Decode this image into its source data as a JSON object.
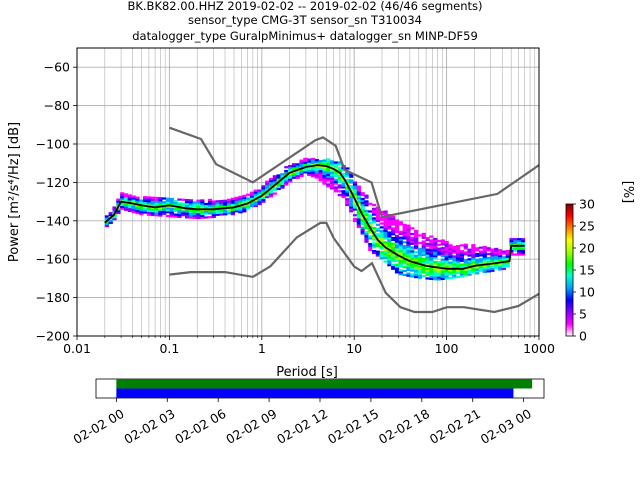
{
  "chart_data": {
    "type": "heatmap",
    "title_lines": [
      "BK.BK82.00.HHZ   2019-02-02 -- 2019-02-02  (46/46 segments)",
      "sensor_type CMG-3T sensor_sn T310034",
      "datalogger_type GuralpMinimus+ datalogger_sn MINP-DF59"
    ],
    "xlabel": "Period [s]",
    "ylabel": "Power [m²/s⁴/Hz] [dB]",
    "x_scale": "log",
    "xlim": [
      0.01,
      1000
    ],
    "ylim": [
      -200,
      -50
    ],
    "grid": true,
    "x_ticks": [
      {
        "value": 0.01,
        "label": "0.01"
      },
      {
        "value": 0.1,
        "label": "0.1"
      },
      {
        "value": 1,
        "label": "1"
      },
      {
        "value": 10,
        "label": "10"
      },
      {
        "value": 100,
        "label": "100"
      },
      {
        "value": 1000,
        "label": "1000"
      }
    ],
    "y_ticks": [
      {
        "value": -60,
        "label": "−60"
      },
      {
        "value": -80,
        "label": "−80"
      },
      {
        "value": -100,
        "label": "−100"
      },
      {
        "value": -120,
        "label": "−120"
      },
      {
        "value": -140,
        "label": "−140"
      },
      {
        "value": -160,
        "label": "−160"
      },
      {
        "value": -180,
        "label": "−180"
      },
      {
        "value": -200,
        "label": "−200"
      }
    ],
    "nhnm": [
      [
        0.1,
        -91.5
      ],
      [
        0.22,
        -97.4
      ],
      [
        0.32,
        -110.5
      ],
      [
        0.8,
        -120
      ],
      [
        3.8,
        -98
      ],
      [
        4.6,
        -96.5
      ],
      [
        6.3,
        -101
      ],
      [
        7.9,
        -113.5
      ],
      [
        15.4,
        -120
      ],
      [
        20,
        -138
      ],
      [
        354.8,
        -126
      ],
      [
        1000,
        -111
      ]
    ],
    "nlnm": [
      [
        0.1,
        -168
      ],
      [
        0.17,
        -166.7
      ],
      [
        0.4,
        -166.7
      ],
      [
        0.8,
        -169.2
      ],
      [
        1.24,
        -163.7
      ],
      [
        2.4,
        -148.6
      ],
      [
        4.3,
        -141.1
      ],
      [
        5,
        -141.1
      ],
      [
        6,
        -149
      ],
      [
        10,
        -163.8
      ],
      [
        12,
        -166.2
      ],
      [
        15.6,
        -162.1
      ],
      [
        21.9,
        -177.5
      ],
      [
        31.6,
        -185
      ],
      [
        45,
        -187.5
      ],
      [
        70,
        -187.5
      ],
      [
        101,
        -185
      ],
      [
        154,
        -185
      ],
      [
        328,
        -187.5
      ],
      [
        600,
        -184.4
      ],
      [
        1000,
        -178
      ]
    ],
    "mode_curve": [
      [
        0.02,
        -141
      ],
      [
        0.025,
        -137
      ],
      [
        0.03,
        -130
      ],
      [
        0.04,
        -131
      ],
      [
        0.05,
        -132
      ],
      [
        0.07,
        -133
      ],
      [
        0.1,
        -132
      ],
      [
        0.15,
        -133.5
      ],
      [
        0.2,
        -134
      ],
      [
        0.3,
        -134
      ],
      [
        0.5,
        -133
      ],
      [
        0.7,
        -131
      ],
      [
        1,
        -127
      ],
      [
        1.5,
        -120
      ],
      [
        2,
        -115
      ],
      [
        3,
        -112
      ],
      [
        4,
        -111
      ],
      [
        5,
        -111.5
      ],
      [
        6,
        -113
      ],
      [
        7,
        -115
      ],
      [
        8,
        -119
      ],
      [
        10,
        -128
      ],
      [
        12,
        -136
      ],
      [
        15,
        -144
      ],
      [
        18,
        -150
      ],
      [
        22,
        -154
      ],
      [
        30,
        -158
      ],
      [
        40,
        -161
      ],
      [
        60,
        -163.5
      ],
      [
        100,
        -165
      ],
      [
        150,
        -165
      ],
      [
        200,
        -163.5
      ],
      [
        350,
        -162
      ],
      [
        480,
        -161
      ],
      [
        500,
        -153
      ],
      [
        700,
        -153
      ]
    ],
    "pdf_band": [
      [
        0.02,
        -144,
        -138
      ],
      [
        0.025,
        -140,
        -134
      ],
      [
        0.03,
        -134,
        -126
      ],
      [
        0.05,
        -137,
        -128
      ],
      [
        0.1,
        -138,
        -128
      ],
      [
        0.2,
        -139,
        -129
      ],
      [
        0.4,
        -138,
        -130
      ],
      [
        0.7,
        -135,
        -126
      ],
      [
        1,
        -131,
        -122
      ],
      [
        1.5,
        -125,
        -115
      ],
      [
        2,
        -120,
        -111
      ],
      [
        3,
        -116,
        -108
      ],
      [
        4,
        -118,
        -108
      ],
      [
        5,
        -122,
        -108
      ],
      [
        6,
        -124,
        -109
      ],
      [
        8,
        -130,
        -111
      ],
      [
        10,
        -140,
        -118
      ],
      [
        12,
        -146,
        -124
      ],
      [
        15,
        -156,
        -130
      ],
      [
        20,
        -160,
        -134
      ],
      [
        30,
        -168,
        -140
      ],
      [
        50,
        -170,
        -146
      ],
      [
        80,
        -171,
        -150
      ],
      [
        120,
        -170,
        -152
      ],
      [
        200,
        -168,
        -153
      ],
      [
        350,
        -166,
        -155
      ],
      [
        480,
        -165,
        -156
      ],
      [
        500,
        -158,
        -149
      ],
      [
        700,
        -158,
        -149
      ]
    ],
    "colorbar": {
      "label": "[%]",
      "range": [
        0,
        30
      ],
      "ticks": [
        {
          "value": 0,
          "label": "0"
        },
        {
          "value": 5,
          "label": "5"
        },
        {
          "value": 10,
          "label": "10"
        },
        {
          "value": 15,
          "label": "15"
        },
        {
          "value": 20,
          "label": "20"
        },
        {
          "value": 25,
          "label": "25"
        },
        {
          "value": 30,
          "label": "30"
        }
      ],
      "colors": [
        "#ffffff",
        "#ff00ff",
        "#8a00ff",
        "#0000ff",
        "#00a0ff",
        "#00ffcc",
        "#00ff00",
        "#a0ff00",
        "#ffff00",
        "#ff8000",
        "#ff0000",
        "#800000"
      ]
    },
    "timeline": {
      "ticks": [
        "02-02 00",
        "02-02 03",
        "02-02 06",
        "02-02 09",
        "02-02 12",
        "02-02 15",
        "02-02 18",
        "02-02 21",
        "02-03 00"
      ],
      "range_hours": [
        -1.2,
        25.2
      ],
      "bars": [
        {
          "color": "#008000",
          "start_hour": 0,
          "end_hour": 24.5
        },
        {
          "color": "#0000ff",
          "start_hour": 0,
          "end_hour": 23.4
        }
      ]
    }
  }
}
